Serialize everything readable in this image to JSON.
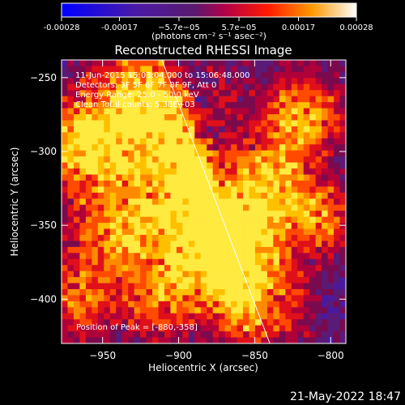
{
  "chart_data": {
    "type": "heatmap",
    "title": "Reconstructed RHESSI Image",
    "xlabel": "Heliocentric X (arcsec)",
    "ylabel": "Heliocentric Y (arcsec)",
    "xlim": [
      -977,
      -790
    ],
    "ylim": [
      -430,
      -238
    ],
    "xticks": [
      -950,
      -900,
      -850,
      -800
    ],
    "yticks": [
      -250,
      -300,
      -350,
      -400
    ],
    "colorbar": {
      "ticks": [
        "-0.00028",
        "-0.00017",
        "−5.7e−05",
        "5.7e−05",
        "0.00017",
        "0.00028"
      ],
      "tick_values": [
        -0.00028,
        -0.00017,
        -5.7e-05,
        5.7e-05,
        0.00017,
        0.00028
      ],
      "range": [
        -0.00028,
        0.00028
      ],
      "units": "(photons cm⁻² s⁻¹ asec⁻²)"
    },
    "annotations": [
      "11-Jun-2015 15:03:04.000 to 15:06:48.000",
      "Detectors: 3F 5F 6F 7F 8F 9F, Att 0",
      "Energy Range: 25.0 - 50.0 keV",
      "Clean     Total counts: 5.38E+03"
    ],
    "peak_label": "Position of Peak = [-880,-358]",
    "peak": [
      -880,
      -358
    ],
    "limb_line": {
      "from": [
        -911,
        -238
      ],
      "to": [
        -840,
        -430
      ]
    },
    "grid": false
  },
  "footer": {
    "date": "21-May-2022 18:47"
  }
}
